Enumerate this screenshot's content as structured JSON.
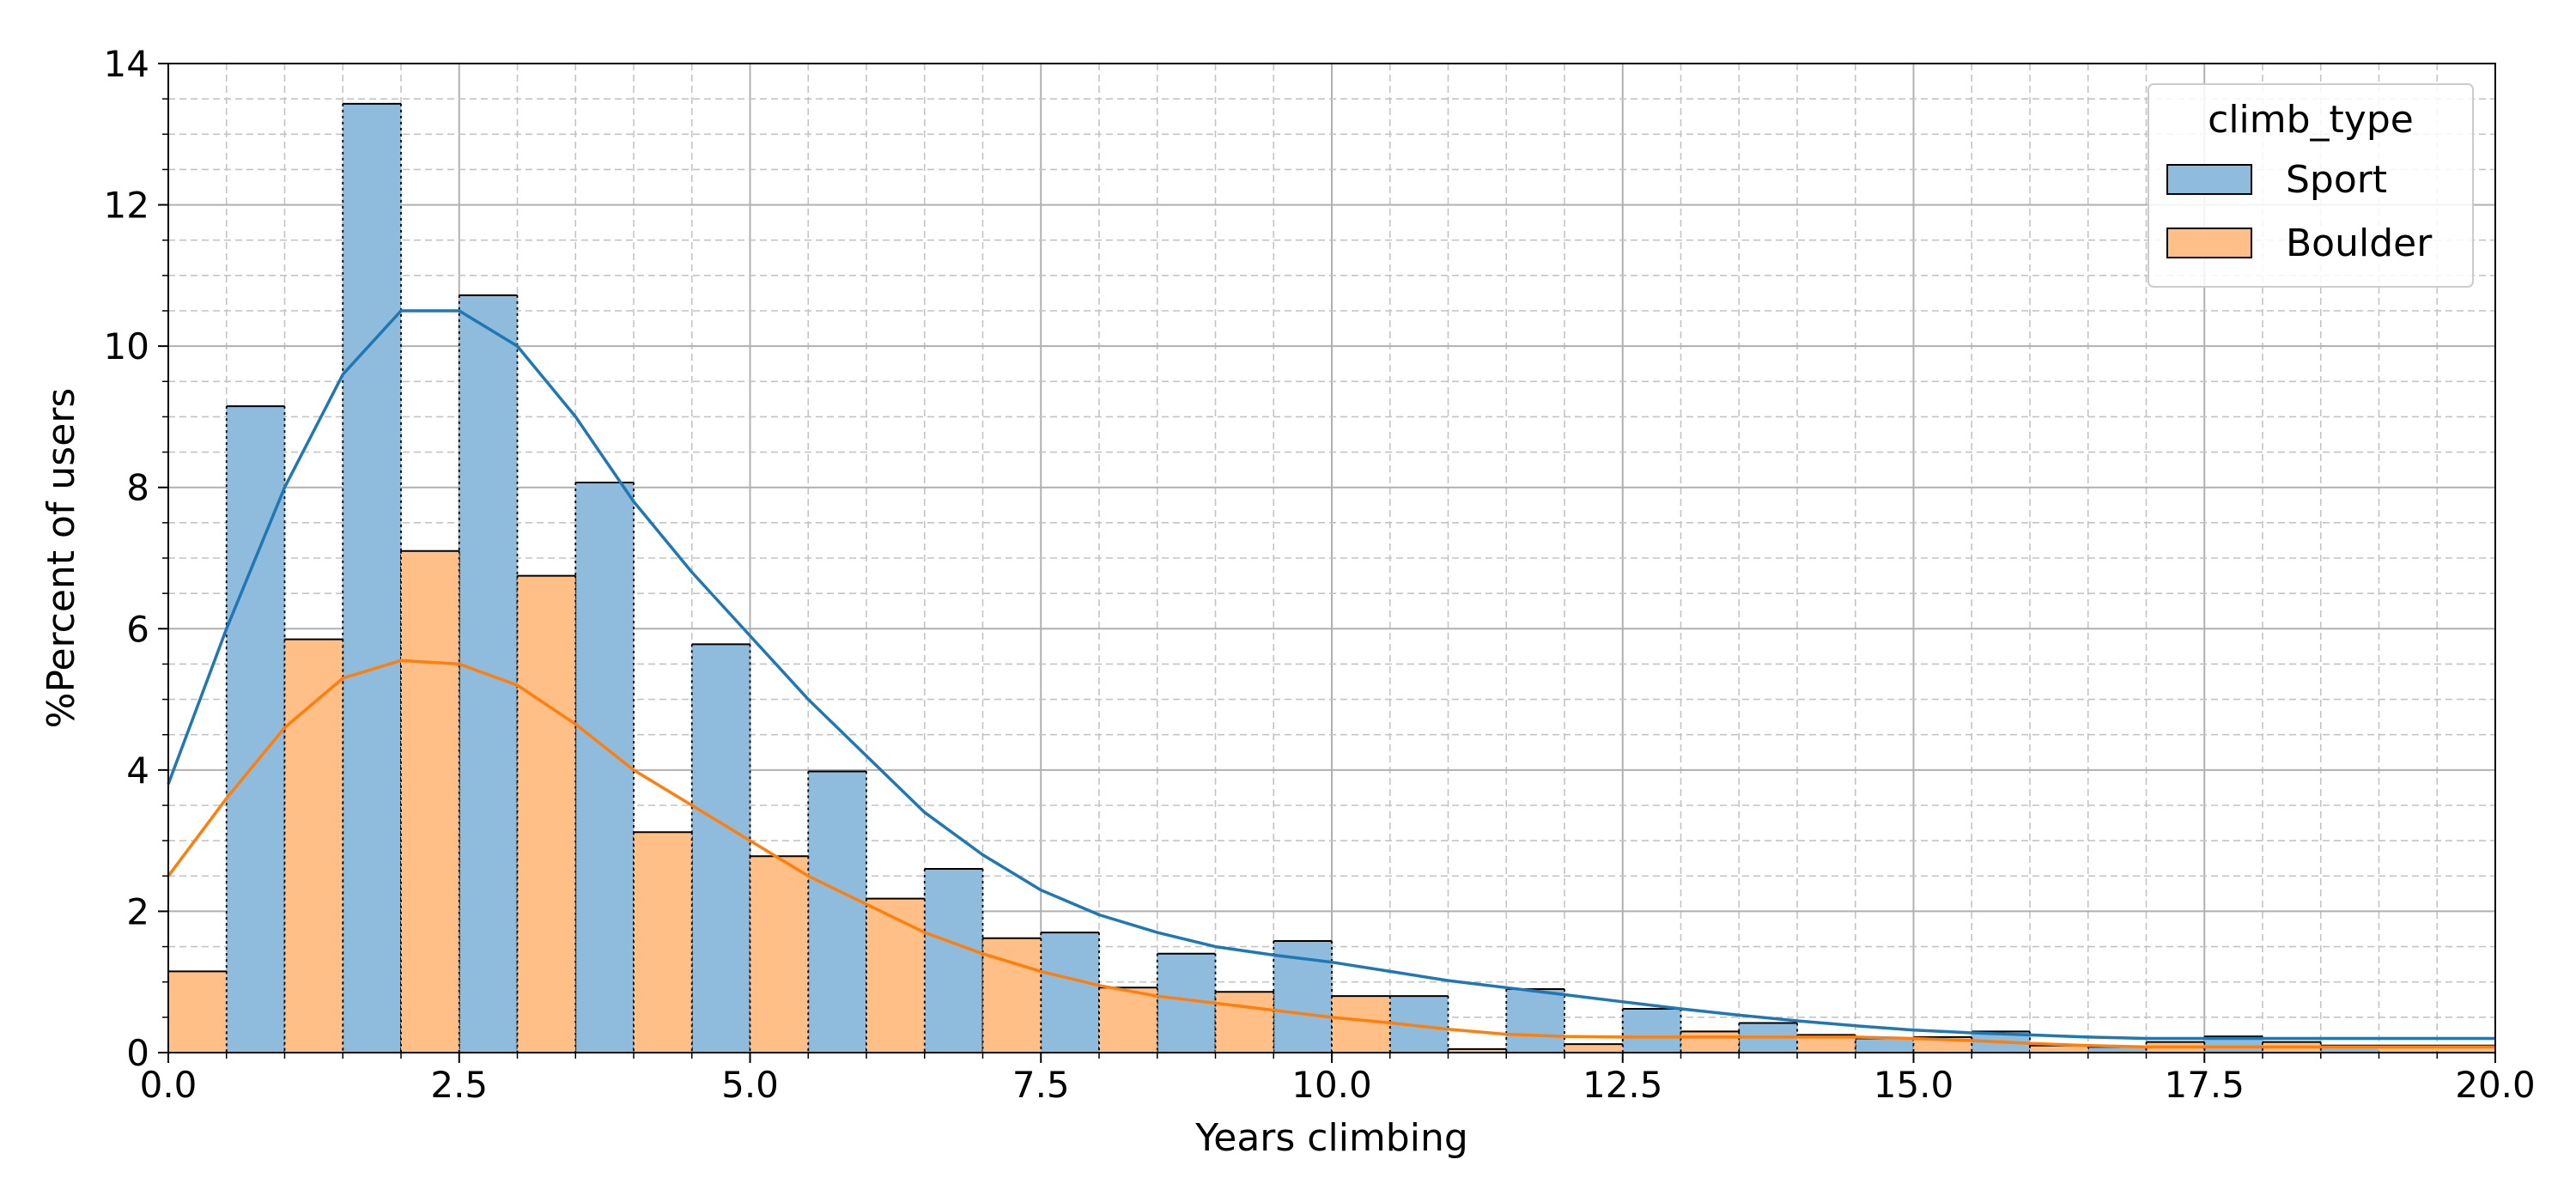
{
  "chart_data": {
    "type": "bar",
    "subtype": "overlaid histogram with KDE curves",
    "xlabel": "Years climbing",
    "ylabel": "%Percent of users",
    "xlim": [
      0,
      20
    ],
    "ylim": [
      0,
      14
    ],
    "bin_width": 0.5,
    "x_ticks": [
      "0.0",
      "2.5",
      "5.0",
      "7.5",
      "10.0",
      "12.5",
      "15.0",
      "17.5",
      "20.0"
    ],
    "y_ticks": [
      "0",
      "2",
      "4",
      "6",
      "8",
      "10",
      "12",
      "14"
    ],
    "grid": "major solid, minor dashed",
    "legend": {
      "title": "climb_type",
      "placement": "top-right"
    },
    "bin_starts": [
      0.0,
      0.5,
      1.0,
      1.5,
      2.0,
      2.5,
      3.0,
      3.5,
      4.0,
      4.5,
      5.0,
      5.5,
      6.0,
      6.5,
      7.0,
      7.5,
      8.0,
      8.5,
      9.0,
      9.5,
      10.0,
      10.5,
      11.0,
      11.5,
      12.0,
      12.5,
      13.0,
      13.5,
      14.0,
      14.5,
      15.0,
      15.5,
      16.0,
      16.5,
      17.0,
      17.5,
      18.0,
      18.5,
      19.0,
      19.5
    ],
    "series": [
      {
        "name": "Sport",
        "color": "#1f77b4",
        "fill": "#8fbbdc",
        "values": [
          0.0,
          9.15,
          0.0,
          13.43,
          0.0,
          10.72,
          0.0,
          8.07,
          0.0,
          5.78,
          0.0,
          3.98,
          0.0,
          2.6,
          0.0,
          1.7,
          0.0,
          1.4,
          0.0,
          1.58,
          0.0,
          0.8,
          0.0,
          0.9,
          0.0,
          0.62,
          0.0,
          0.42,
          0.0,
          0.2,
          0.0,
          0.3,
          0.0,
          0.08,
          0.0,
          0.23,
          0.0,
          0.1,
          0.0,
          0.0
        ],
        "kde_x": [
          0,
          0.5,
          1,
          1.5,
          2,
          2.5,
          3,
          3.5,
          4,
          4.5,
          5,
          5.5,
          6,
          6.5,
          7,
          7.5,
          8,
          8.5,
          9,
          9.5,
          10,
          10.5,
          11,
          11.5,
          12,
          12.5,
          13,
          13.5,
          14,
          14.5,
          15,
          15.5,
          16,
          16.5,
          17,
          17.5,
          18,
          18.5,
          19,
          19.5,
          20
        ],
        "kde_y": [
          3.8,
          6.0,
          8.0,
          9.6,
          10.5,
          10.5,
          10.0,
          9.0,
          7.8,
          6.8,
          5.9,
          5.0,
          4.2,
          3.4,
          2.8,
          2.3,
          1.95,
          1.7,
          1.5,
          1.38,
          1.28,
          1.15,
          1.02,
          0.92,
          0.82,
          0.72,
          0.62,
          0.53,
          0.45,
          0.38,
          0.32,
          0.28,
          0.25,
          0.22,
          0.2,
          0.2,
          0.2,
          0.2,
          0.2,
          0.2,
          0.2
        ]
      },
      {
        "name": "Boulder",
        "color": "#ff7f0e",
        "fill": "#ffbf86",
        "values": [
          1.15,
          0.0,
          5.85,
          0.0,
          7.1,
          0.0,
          6.75,
          0.0,
          3.12,
          0.0,
          2.78,
          0.0,
          2.18,
          0.0,
          1.62,
          0.0,
          0.92,
          0.0,
          0.86,
          0.0,
          0.8,
          0.0,
          0.05,
          0.0,
          0.12,
          0.0,
          0.3,
          0.0,
          0.25,
          0.0,
          0.22,
          0.0,
          0.1,
          0.0,
          0.15,
          0.0,
          0.15,
          0.0,
          0.1,
          0.1
        ],
        "kde_x": [
          0,
          0.5,
          1,
          1.5,
          2,
          2.5,
          3,
          3.5,
          4,
          4.5,
          5,
          5.5,
          6,
          6.5,
          7,
          7.5,
          8,
          8.5,
          9,
          9.5,
          10,
          10.5,
          11,
          11.5,
          12,
          12.5,
          13,
          13.5,
          14,
          14.5,
          15,
          15.5,
          16,
          16.5,
          17,
          17.5,
          18,
          18.5,
          19,
          19.5,
          20
        ],
        "kde_y": [
          2.5,
          3.6,
          4.6,
          5.3,
          5.55,
          5.5,
          5.2,
          4.65,
          4.0,
          3.5,
          3.0,
          2.5,
          2.1,
          1.7,
          1.4,
          1.15,
          0.95,
          0.8,
          0.7,
          0.6,
          0.5,
          0.42,
          0.33,
          0.26,
          0.23,
          0.22,
          0.22,
          0.22,
          0.22,
          0.22,
          0.2,
          0.17,
          0.13,
          0.1,
          0.08,
          0.08,
          0.08,
          0.08,
          0.08,
          0.08,
          0.08
        ]
      }
    ]
  }
}
